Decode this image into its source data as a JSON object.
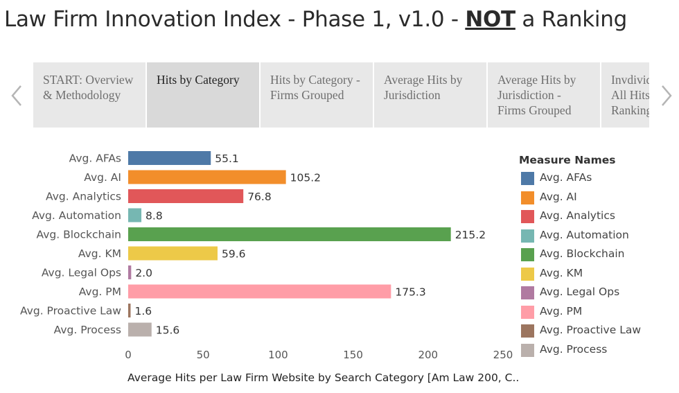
{
  "header": {
    "title_part1": "Law Firm Innovation Index - Phase 1, v1.0 - ",
    "title_emphasis": "NOT",
    "title_part2": " a Ranking"
  },
  "tabs": [
    {
      "label": "START: Overview & Methodology",
      "active": false
    },
    {
      "label": "Hits by Category",
      "active": true
    },
    {
      "label": "Hits by Category - Firms Grouped",
      "active": false
    },
    {
      "label": "Average Hits by Jurisdiction",
      "active": false
    },
    {
      "label": "Average Hits by Jurisdiction - Firms Grouped",
      "active": false
    },
    {
      "label": "Invdividual Firm - All Hits (NOT a Ranking)",
      "active": false
    }
  ],
  "chart_data": {
    "type": "bar",
    "orientation": "horizontal",
    "categories": [
      "Avg. AFAs",
      "Avg. AI",
      "Avg. Analytics",
      "Avg. Automation",
      "Avg. Blockchain",
      "Avg. KM",
      "Avg. Legal Ops",
      "Avg. PM",
      "Avg. Proactive Law",
      "Avg. Process"
    ],
    "values": [
      55.1,
      105.2,
      76.8,
      8.8,
      215.2,
      59.6,
      2.0,
      175.3,
      1.6,
      15.6
    ],
    "value_labels": [
      "55.1",
      "105.2",
      "76.8",
      "8.8",
      "215.2",
      "59.6",
      "2.0",
      "175.3",
      "1.6",
      "15.6"
    ],
    "colors": [
      "#4e79a7",
      "#f28e2b",
      "#e15759",
      "#76b7b2",
      "#59a14f",
      "#edc948",
      "#b07aa1",
      "#ff9da7",
      "#9c755f",
      "#bab0ac"
    ],
    "xlim": [
      0,
      250
    ],
    "xticks": [
      0,
      50,
      100,
      150,
      200,
      250
    ],
    "xlabel": "Average Hits per Law Firm Website by Search Category [Am Law 200, C..",
    "ylabel": "",
    "grid": false,
    "legend": {
      "title": "Measure Names",
      "placement": "right",
      "entries": [
        "Avg. AFAs",
        "Avg. AI",
        "Avg. Analytics",
        "Avg. Automation",
        "Avg. Blockchain",
        "Avg. KM",
        "Avg. Legal Ops",
        "Avg. PM",
        "Avg. Proactive Law",
        "Avg. Process"
      ]
    }
  }
}
